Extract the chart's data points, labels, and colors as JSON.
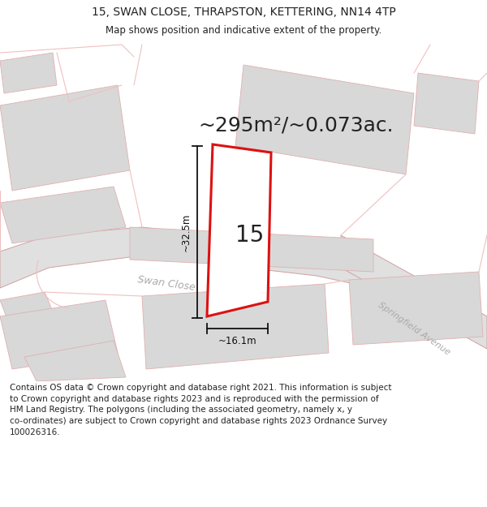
{
  "title_line1": "15, SWAN CLOSE, THRAPSTON, KETTERING, NN14 4TP",
  "title_line2": "Map shows position and indicative extent of the property.",
  "area_text": "~295m²/~0.073ac.",
  "label_15": "15",
  "label_height": "~32.5m",
  "label_width": "~16.1m",
  "label_swan_close": "Swan Close",
  "label_springfield": "Springfield Avenue",
  "footer_text": "Contains OS data © Crown copyright and database right 2021. This information is subject\nto Crown copyright and database rights 2023 and is reproduced with the permission of\nHM Land Registry. The polygons (including the associated geometry, namely x, y\nco-ordinates) are subject to Crown copyright and database rights 2023 Ordnance Survey\n100026316.",
  "map_bg": "#ffffff",
  "building_color": "#d8d8d8",
  "building_edge": "#e0b0b0",
  "road_color": "#e0e0e0",
  "road_edge": "#d0a0a0",
  "highlight_color": "#dd1111",
  "line_color": "#f0c0c0",
  "text_color": "#222222",
  "dim_color": "#111111",
  "road_label_color": "#aaaaaa",
  "title_fontsize": 10,
  "subtitle_fontsize": 8.5,
  "area_fontsize": 18,
  "label_fontsize": 20,
  "dim_fontsize": 8.5,
  "road_label_fontsize": 9,
  "springfield_fontsize": 8,
  "footer_fontsize": 7.5
}
